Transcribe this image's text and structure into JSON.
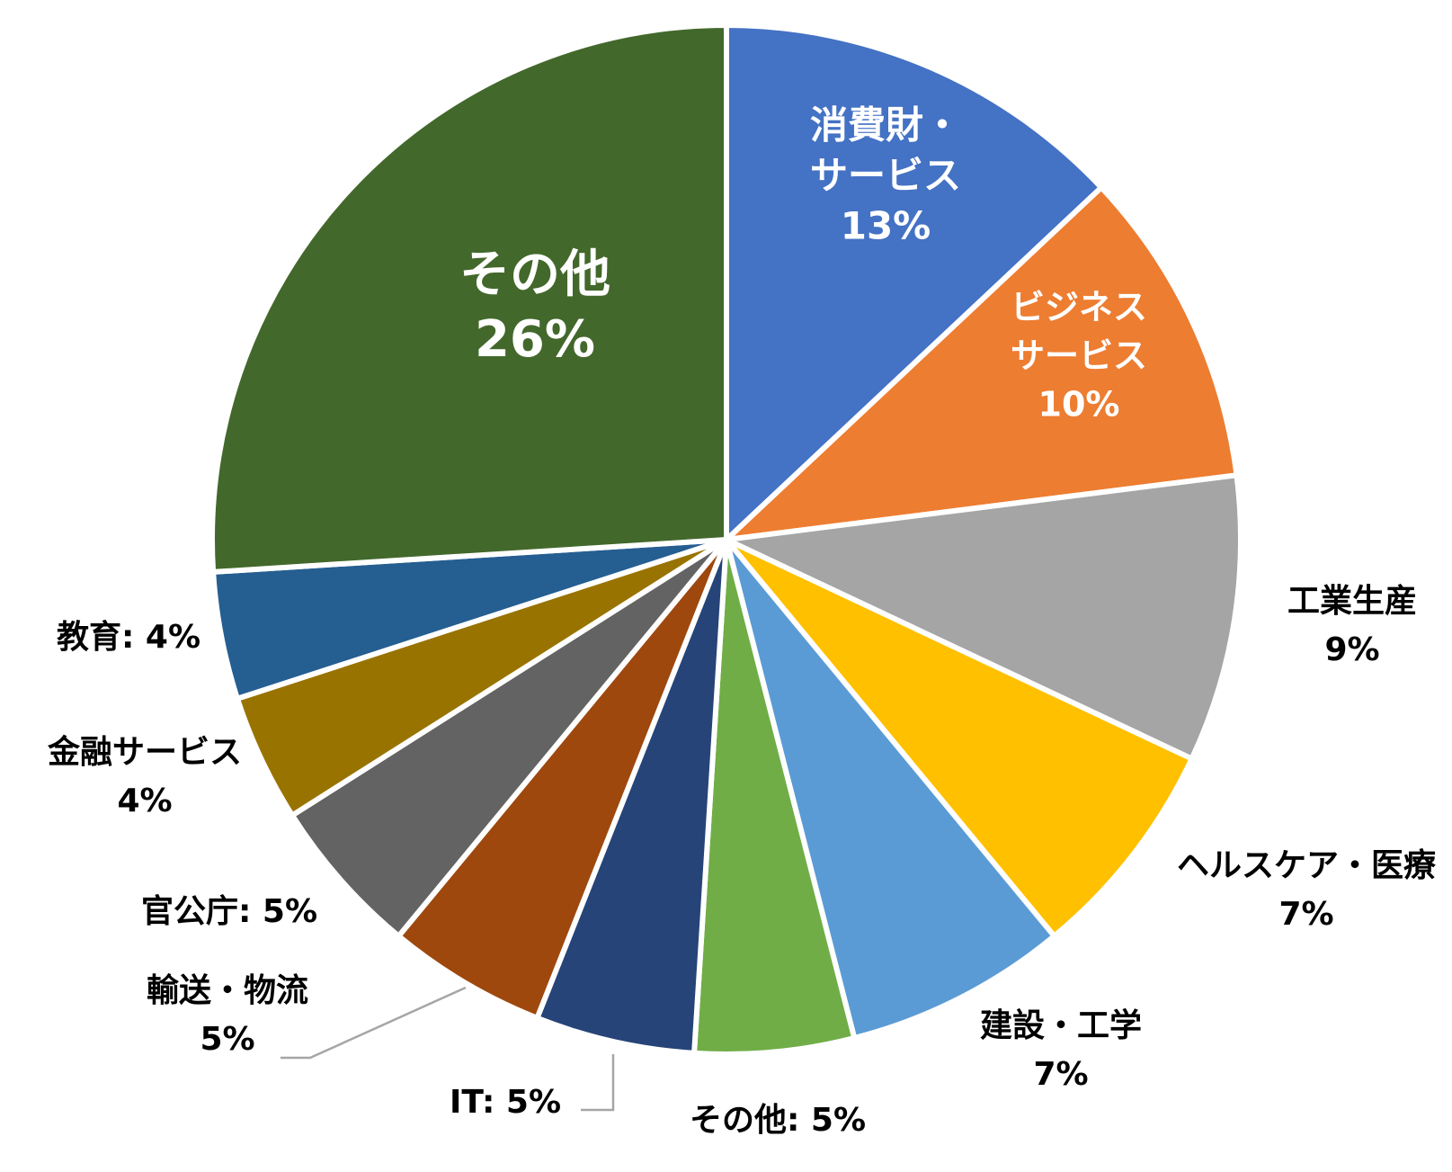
{
  "chart_data": {
    "type": "pie",
    "title": "",
    "start_angle": 0,
    "direction": "clockwise",
    "series": [
      {
        "category": "消費財・サービス",
        "value": 13,
        "color": "#4472C4",
        "label_lines": [
          "消費財・",
          "サービス",
          "13%"
        ],
        "label_color": "#ffffff"
      },
      {
        "category": "ビジネスサービス",
        "value": 10,
        "color": "#ED7D31",
        "label_lines": [
          "ビジネス",
          "サービス",
          "10%"
        ],
        "label_color": "#ffffff"
      },
      {
        "category": "工業生産",
        "value": 9,
        "color": "#A5A5A5",
        "label_lines": [
          "工業生産",
          "9%"
        ],
        "label_color": "#000000"
      },
      {
        "category": "ヘルスケア・医療",
        "value": 7,
        "color": "#FFC000",
        "label_lines": [
          "ヘルスケア・医療",
          "7%"
        ],
        "label_color": "#000000"
      },
      {
        "category": "建設・工学",
        "value": 7,
        "color": "#5B9BD5",
        "label_lines": [
          "建設・工学",
          "7%"
        ],
        "label_color": "#000000"
      },
      {
        "category": "その他",
        "value": 5,
        "color": "#70AD47",
        "label_lines": [
          "その他: 5%"
        ],
        "label_color": "#000000"
      },
      {
        "category": "IT",
        "value": 5,
        "color": "#264478",
        "label_lines": [
          "IT: 5%"
        ],
        "label_color": "#000000"
      },
      {
        "category": "輸送・物流",
        "value": 5,
        "color": "#9E480E",
        "label_lines": [
          "輸送・物流",
          "5%"
        ],
        "label_color": "#000000"
      },
      {
        "category": "官公庁",
        "value": 5,
        "color": "#636363",
        "label_lines": [
          "官公庁: 5%"
        ],
        "label_color": "#000000"
      },
      {
        "category": "金融サービス",
        "value": 4,
        "color": "#997300",
        "label_lines": [
          "金融サービス",
          "4%"
        ],
        "label_color": "#000000"
      },
      {
        "category": "教育",
        "value": 4,
        "color": "#255E91",
        "label_lines": [
          "教育: 4%"
        ],
        "label_color": "#000000"
      },
      {
        "category": "その他",
        "value": 26,
        "color": "#43682B",
        "label_lines": [
          "その他",
          "26%"
        ],
        "label_color": "#ffffff"
      }
    ]
  }
}
